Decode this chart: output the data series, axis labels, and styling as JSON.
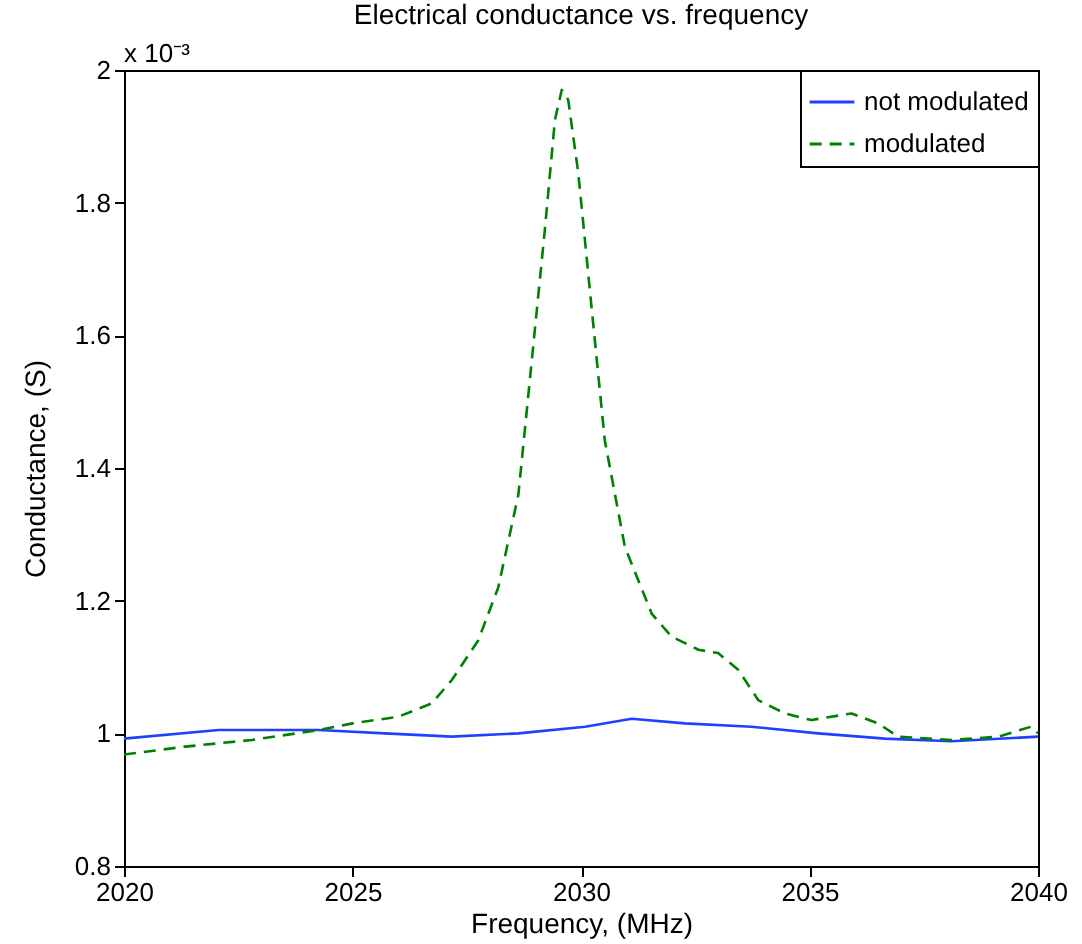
{
  "chart_data": {
    "type": "line",
    "title": "Electrical conductance vs. frequency",
    "xlabel": "Frequency, (MHz)",
    "ylabel": "Conductance, (S)",
    "annotations": [
      "x 10⁻³"
    ],
    "xlim": [
      2020,
      2040
    ],
    "xticks": [
      2020,
      2025,
      2030,
      2035,
      2040
    ],
    "ylim": [
      0.8,
      2
    ],
    "yticks": [
      0.8,
      1,
      1.2,
      1.4,
      1.6,
      1.8,
      2
    ],
    "legend": "top right",
    "series": [
      {
        "name": "not modulated",
        "color": "#2040ff",
        "line_style": "solid",
        "x": [
          2020,
          2022.07,
          2024.26,
          2025.71,
          2027.17,
          2028.63,
          2030.09,
          2031.11,
          2032.27,
          2033.73,
          2035.19,
          2036.65,
          2038.1,
          2040
        ],
        "values": [
          0.992,
          1.005,
          1.005,
          1.0,
          0.995,
          1.0,
          1.01,
          1.022,
          1.015,
          1.01,
          1.0,
          0.992,
          0.988,
          0.995
        ]
      },
      {
        "name": "modulated",
        "color": "#008000",
        "line_style": "dashed",
        "x": [
          2020,
          2021.34,
          2022.8,
          2024.26,
          2025,
          2026,
          2026.73,
          2027.17,
          2027.75,
          2028.19,
          2028.63,
          2028.92,
          2029.21,
          2029.43,
          2029.58,
          2029.72,
          2029.94,
          2030.23,
          2030.52,
          2030.96,
          2031.55,
          2031.98,
          2032.57,
          2033,
          2033.44,
          2033.88,
          2034.46,
          2035.04,
          2035.92,
          2036.5,
          2036.94,
          2038.1,
          2039.13,
          2039.85,
          2040
        ],
        "values": [
          0.968,
          0.98,
          0.99,
          1.005,
          1.015,
          1.025,
          1.045,
          1.08,
          1.14,
          1.22,
          1.36,
          1.56,
          1.76,
          1.925,
          1.97,
          1.955,
          1.845,
          1.643,
          1.442,
          1.281,
          1.18,
          1.146,
          1.126,
          1.121,
          1.096,
          1.05,
          1.03,
          1.02,
          1.03,
          1.015,
          0.995,
          0.99,
          0.995,
          1.01,
          1.0
        ]
      }
    ]
  }
}
